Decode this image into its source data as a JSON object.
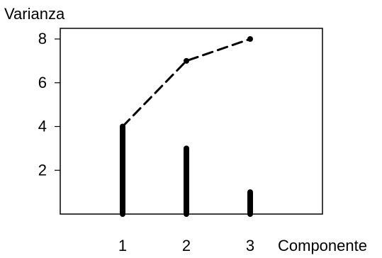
{
  "chart_data": {
    "type": "bar",
    "ylabel": "Varianza",
    "xlabel": "Componente",
    "categories": [
      "1",
      "2",
      "3"
    ],
    "x_ticks": [
      "1",
      "2",
      "3"
    ],
    "y_ticks": [
      "2",
      "4",
      "6",
      "8"
    ],
    "ylim": [
      0,
      8
    ],
    "series": [
      {
        "type": "bar",
        "values": [
          4,
          3,
          1
        ]
      },
      {
        "type": "line",
        "style": "dashed",
        "values": [
          4,
          7,
          8
        ]
      }
    ],
    "grid": false,
    "colors": {
      "bars": "#000000",
      "line": "#000000",
      "axes": "#000000",
      "background": "#ffffff"
    }
  }
}
